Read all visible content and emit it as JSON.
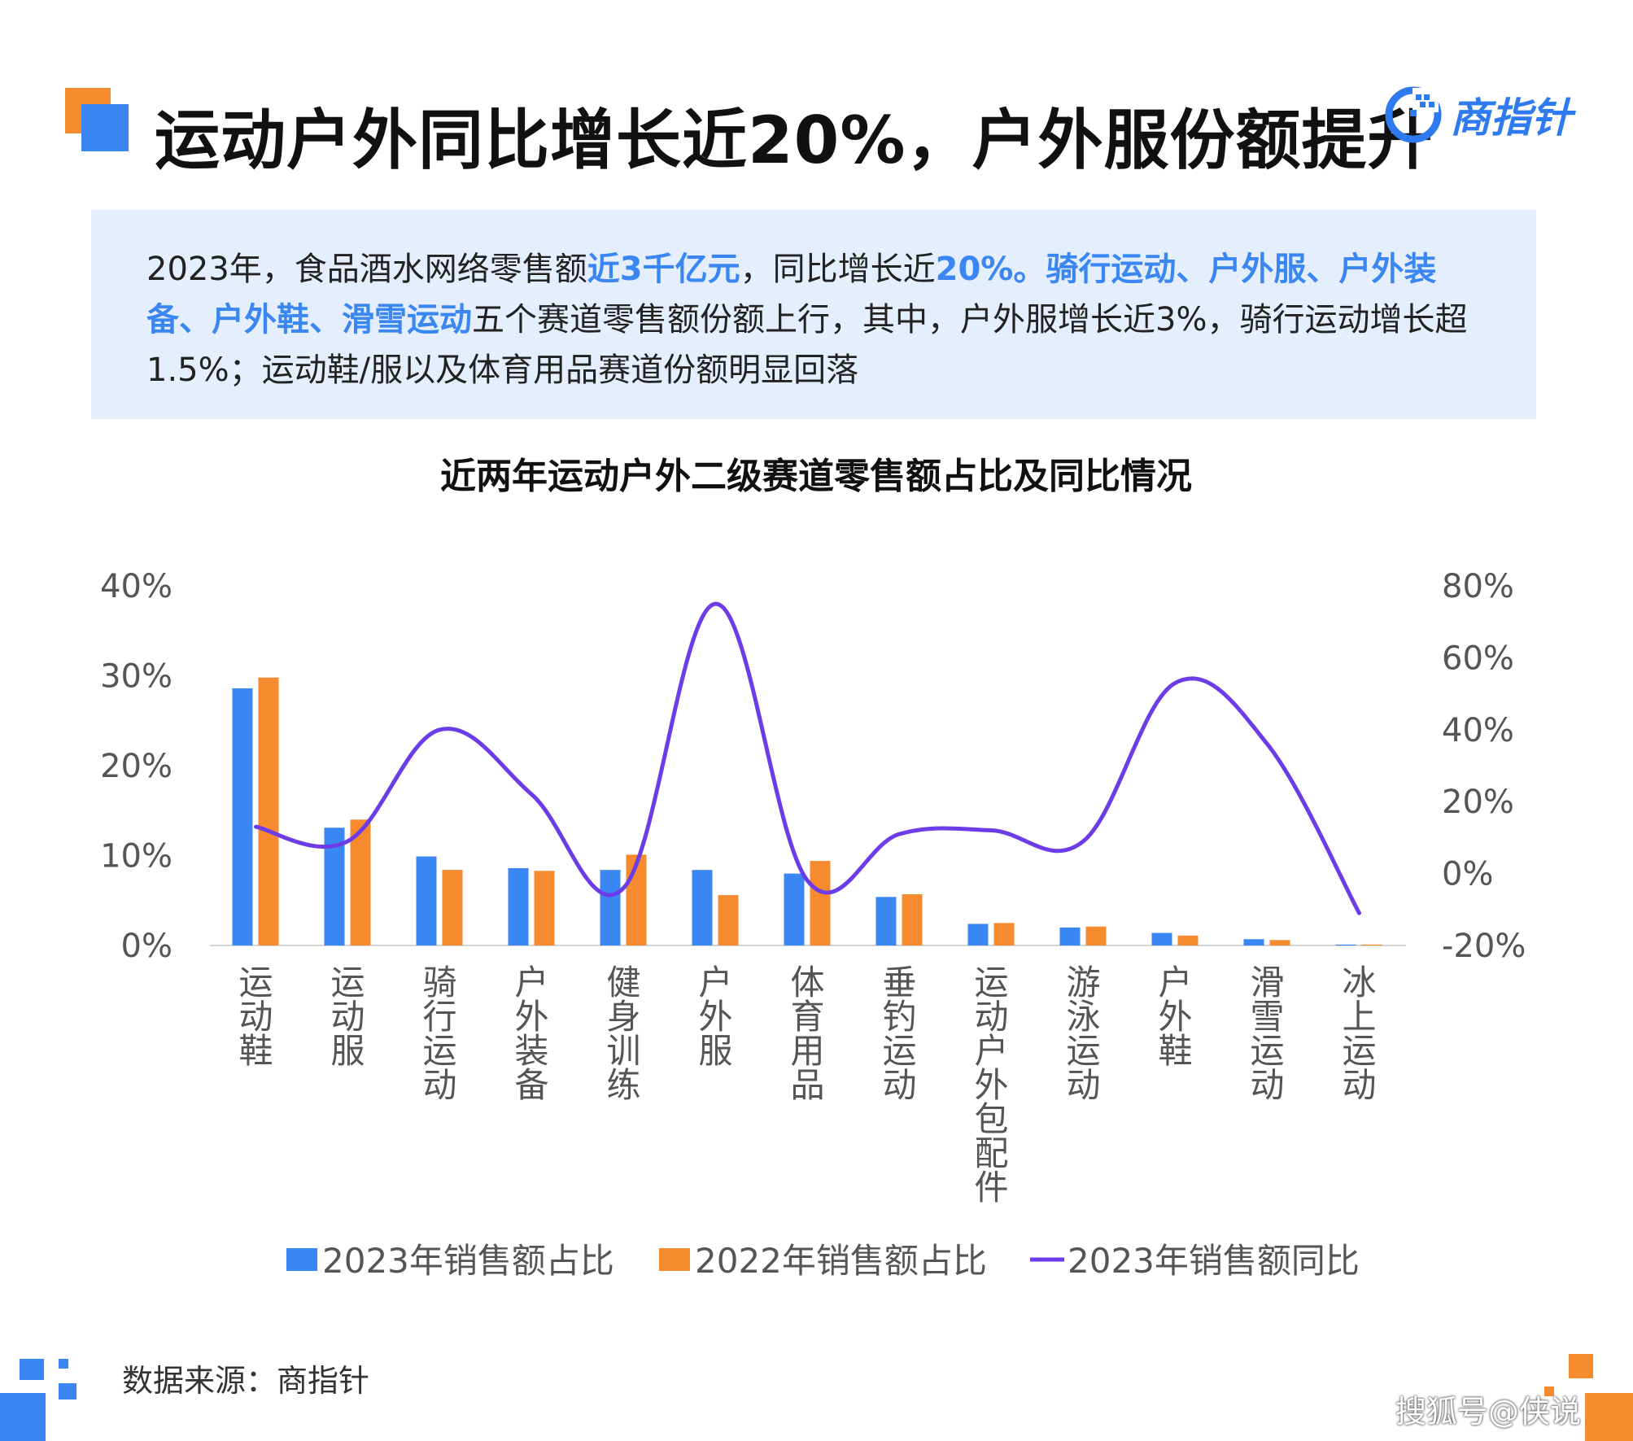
{
  "title": "运动户外同比增长近20%，户外服份额提升",
  "logo": {
    "text": "商指针",
    "icon": "pointer-dial-icon"
  },
  "summary": {
    "s1": "2023年，食品酒水网络零售额",
    "s2": "近3千亿元",
    "s3": "，同比增长近",
    "s4": "20%。骑行运动、户外服、户外装备、户外鞋、滑雪运动",
    "s5": "五个赛道零售额份额上行，其中，户外服增长近3%，骑行运动增长超1.5%；运动鞋/服以及体育用品赛道份额明显回落"
  },
  "colors": {
    "accent_blue": "#3a86f2",
    "accent_orange": "#f58a2e",
    "line_purple": "#6c3ce8",
    "summary_bg": "#e4eefc"
  },
  "chart_data": {
    "type": "bar",
    "title": "近两年运动户外二级赛道零售额占比及同比情况",
    "categories": [
      "运动鞋",
      "运动服",
      "骑行运动",
      "户外装备",
      "健身训练",
      "户外服",
      "体育用品",
      "垂钓运动",
      "运动户外包配件",
      "游泳运动",
      "户外鞋",
      "滑雪运动",
      "冰上运动"
    ],
    "series": [
      {
        "name": "2023年销售额占比",
        "type": "bar",
        "axis": "left",
        "values": [
          28.6,
          13.1,
          9.9,
          8.6,
          8.4,
          8.4,
          8.0,
          5.4,
          2.4,
          2.0,
          1.4,
          0.7,
          0.1
        ]
      },
      {
        "name": "2022年销售额占比",
        "type": "bar",
        "axis": "right_of_pair",
        "values": [
          29.8,
          14.0,
          8.4,
          8.3,
          10.1,
          5.6,
          9.4,
          5.7,
          2.5,
          2.1,
          1.1,
          0.6,
          0.1
        ]
      },
      {
        "name": "2023年销售额同比",
        "type": "line",
        "axis": "right",
        "values": [
          13,
          9,
          40,
          22,
          -4,
          75,
          -2,
          11,
          12,
          9,
          53,
          36,
          -11
        ]
      }
    ],
    "y_left": {
      "min": 0,
      "max": 40,
      "ticks": [
        "40%",
        "30%",
        "20%",
        "10%",
        "0%"
      ]
    },
    "y_right": {
      "min": -20,
      "max": 80,
      "ticks": [
        "80%",
        "60%",
        "40%",
        "20%",
        "0%",
        "-20%"
      ]
    },
    "legend_position": "bottom",
    "grid": false
  },
  "source": "数据来源：商指针",
  "watermark": "搜狐号@侠说"
}
